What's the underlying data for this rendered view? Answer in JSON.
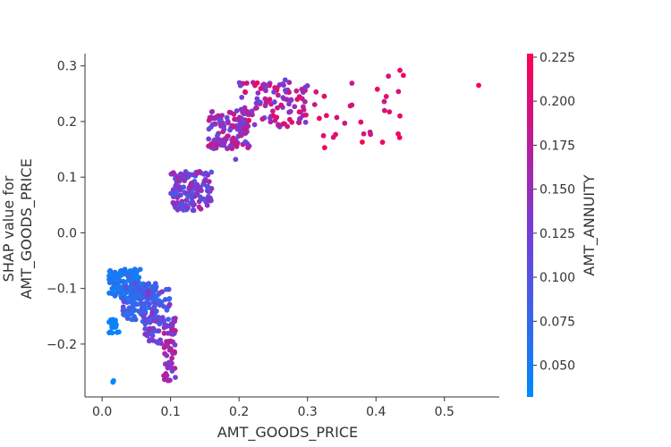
{
  "chart_data": {
    "type": "scatter",
    "title": "",
    "xlabel": "AMT_GOODS_PRICE",
    "ylabel_lines": [
      "SHAP value for",
      "AMT_GOODS_PRICE"
    ],
    "xlim": [
      -0.025,
      0.58
    ],
    "ylim": [
      -0.295,
      0.322
    ],
    "x_ticks": [
      0.0,
      0.1,
      0.2,
      0.3,
      0.4,
      0.5
    ],
    "x_tick_labels": [
      "0.0",
      "0.1",
      "0.2",
      "0.3",
      "0.4",
      "0.5"
    ],
    "y_ticks": [
      -0.2,
      -0.1,
      0.0,
      0.1,
      0.2,
      0.3
    ],
    "y_tick_labels": [
      "−0.2",
      "−0.1",
      "0.0",
      "0.1",
      "0.2",
      "0.3"
    ],
    "grid": false,
    "colorbar": {
      "label": "AMT_ANNUITY",
      "min": 0.032,
      "max": 0.227,
      "ticks": [
        0.05,
        0.075,
        0.1,
        0.125,
        0.15,
        0.175,
        0.2,
        0.225
      ],
      "tick_labels": [
        "0.050",
        "0.075",
        "0.100",
        "0.125",
        "0.150",
        "0.175",
        "0.200",
        "0.225"
      ],
      "colormap": [
        "#008afb",
        "#7a3ad6",
        "#ff0052"
      ]
    },
    "clusters": [
      {
        "x_range": [
          0.01,
          0.025
        ],
        "y_range": [
          -0.18,
          -0.155
        ],
        "c_range": [
          0.033,
          0.045
        ],
        "count": 18
      },
      {
        "x_range": [
          0.014,
          0.018
        ],
        "y_range": [
          -0.27,
          -0.262
        ],
        "c_range": [
          0.033,
          0.04
        ],
        "count": 2
      },
      {
        "x_range": [
          0.01,
          0.06
        ],
        "y_range": [
          -0.12,
          -0.065
        ],
        "c_range": [
          0.035,
          0.075
        ],
        "count": 150
      },
      {
        "x_range": [
          0.03,
          0.08
        ],
        "y_range": [
          -0.16,
          -0.09
        ],
        "c_range": [
          0.05,
          0.11
        ],
        "count": 110
      },
      {
        "x_range": [
          0.06,
          0.106
        ],
        "y_range": [
          -0.2,
          -0.1
        ],
        "c_range": [
          0.07,
          0.15
        ],
        "count": 90
      },
      {
        "x_range": [
          0.09,
          0.107
        ],
        "y_range": [
          -0.27,
          -0.15
        ],
        "c_range": [
          0.12,
          0.19
        ],
        "count": 50
      },
      {
        "x_range": [
          0.1,
          0.16
        ],
        "y_range": [
          0.04,
          0.11
        ],
        "c_range": [
          0.085,
          0.17
        ],
        "count": 160
      },
      {
        "x_range": [
          0.155,
          0.215
        ],
        "y_range": [
          0.15,
          0.22
        ],
        "c_range": [
          0.1,
          0.2
        ],
        "count": 120
      },
      {
        "x_range": [
          0.2,
          0.3
        ],
        "y_range": [
          0.19,
          0.275
        ],
        "c_range": [
          0.11,
          0.215
        ],
        "count": 110
      },
      {
        "x_range": [
          0.3,
          0.44
        ],
        "y_range": [
          0.16,
          0.29
        ],
        "c_range": [
          0.18,
          0.225
        ],
        "count": 25
      }
    ],
    "points": [
      {
        "x": 0.55,
        "y": 0.265,
        "c": 0.22
      },
      {
        "x": 0.435,
        "y": 0.292,
        "c": 0.21
      },
      {
        "x": 0.44,
        "y": 0.283,
        "c": 0.215
      },
      {
        "x": 0.415,
        "y": 0.245,
        "c": 0.205
      },
      {
        "x": 0.435,
        "y": 0.21,
        "c": 0.21
      },
      {
        "x": 0.402,
        "y": 0.258,
        "c": 0.215
      },
      {
        "x": 0.38,
        "y": 0.163,
        "c": 0.22
      },
      {
        "x": 0.325,
        "y": 0.153,
        "c": 0.22
      },
      {
        "x": 0.195,
        "y": 0.132,
        "c": 0.12
      },
      {
        "x": 0.016,
        "y": -0.268,
        "c": 0.034
      }
    ]
  }
}
